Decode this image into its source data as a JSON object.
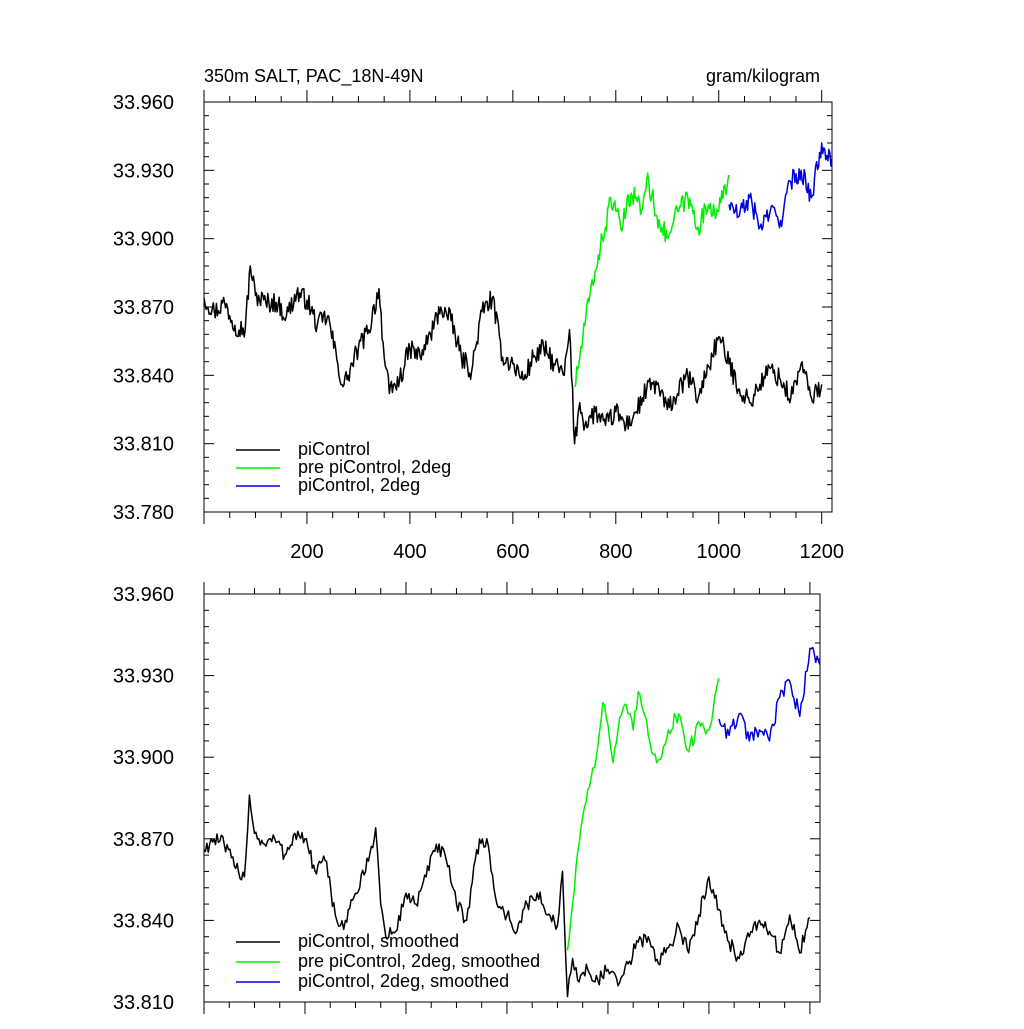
{
  "chart_data": [
    {
      "type": "line",
      "title": "350m SALT, PAC_18N-49N",
      "units": "gram/kilogram",
      "xlabel": "",
      "ylabel": "",
      "xlim": [
        0,
        1220
      ],
      "ylim": [
        33.78,
        33.96
      ],
      "x_ticks": [
        200,
        400,
        600,
        800,
        1000,
        1200
      ],
      "x_tick_labels": [
        "200",
        "400",
        "600",
        "800",
        "1000",
        "1200"
      ],
      "y_ticks": [
        33.78,
        33.81,
        33.84,
        33.87,
        33.9,
        33.93,
        33.96
      ],
      "y_tick_labels": [
        "33.780",
        "33.810",
        "33.840",
        "33.870",
        "33.900",
        "33.930",
        "33.960"
      ],
      "grid": false,
      "legend_position": "bottom-left",
      "series": [
        {
          "name": "piControl",
          "color": "#000000",
          "x": [
            0,
            20,
            40,
            60,
            80,
            90,
            100,
            120,
            140,
            160,
            180,
            200,
            220,
            240,
            260,
            270,
            280,
            300,
            320,
            340,
            350,
            360,
            380,
            400,
            420,
            440,
            460,
            480,
            500,
            520,
            540,
            560,
            580,
            600,
            620,
            640,
            660,
            680,
            700,
            710,
            720,
            730,
            740,
            760,
            780,
            800,
            820,
            840,
            860,
            880,
            900,
            920,
            940,
            960,
            980,
            1000,
            1020,
            1040,
            1060,
            1080,
            1100,
            1120,
            1140,
            1160,
            1180,
            1200
          ],
          "y": [
            33.874,
            33.868,
            33.872,
            33.862,
            33.86,
            33.888,
            33.875,
            33.872,
            33.872,
            33.866,
            33.876,
            33.873,
            33.862,
            33.866,
            33.845,
            33.835,
            33.84,
            33.852,
            33.86,
            33.878,
            33.848,
            33.832,
            33.838,
            33.852,
            33.848,
            33.858,
            33.87,
            33.864,
            33.848,
            33.842,
            33.868,
            33.874,
            33.848,
            33.845,
            33.838,
            33.848,
            33.852,
            33.845,
            33.84,
            33.86,
            33.81,
            33.828,
            33.818,
            33.824,
            33.818,
            33.824,
            33.818,
            33.824,
            33.834,
            33.836,
            33.825,
            33.832,
            33.84,
            33.83,
            33.844,
            33.857,
            33.845,
            33.834,
            33.828,
            33.836,
            33.843,
            33.838,
            33.83,
            33.845,
            33.83,
            33.836
          ]
        },
        {
          "name": "pre piControl, 2deg",
          "color": "#00ee00",
          "x": [
            720,
            730,
            740,
            750,
            760,
            770,
            780,
            790,
            800,
            810,
            820,
            830,
            840,
            850,
            860,
            870,
            880,
            890,
            900,
            910,
            920,
            940,
            960,
            980,
            1000,
            1020
          ],
          "y": [
            33.835,
            33.848,
            33.862,
            33.876,
            33.886,
            33.896,
            33.905,
            33.918,
            33.912,
            33.904,
            33.912,
            33.92,
            33.918,
            33.912,
            33.926,
            33.919,
            33.91,
            33.905,
            33.9,
            33.906,
            33.912,
            33.918,
            33.905,
            33.915,
            33.912,
            33.928
          ]
        },
        {
          "name": "piControl, 2deg",
          "color": "#0000dd",
          "x": [
            1020,
            1040,
            1060,
            1080,
            1100,
            1120,
            1140,
            1160,
            1180,
            1200,
            1220
          ],
          "y": [
            33.915,
            33.91,
            33.918,
            33.905,
            33.912,
            33.908,
            33.925,
            33.93,
            33.918,
            33.942,
            33.935
          ]
        }
      ]
    },
    {
      "type": "line",
      "title": "",
      "xlabel": "",
      "ylabel": "",
      "xlim": [
        0,
        1220
      ],
      "ylim": [
        33.81,
        33.96
      ],
      "x_ticks": [
        200,
        400,
        600,
        800,
        1000,
        1200
      ],
      "x_tick_labels": [],
      "y_ticks": [
        33.81,
        33.84,
        33.87,
        33.9,
        33.93,
        33.96
      ],
      "y_tick_labels": [
        "33.810",
        "33.840",
        "33.870",
        "33.900",
        "33.930",
        "33.960"
      ],
      "grid": false,
      "legend_position": "bottom-left",
      "series": [
        {
          "name": "piControl, smoothed",
          "color": "#000000",
          "x": [
            0,
            20,
            40,
            60,
            80,
            90,
            100,
            120,
            140,
            160,
            180,
            200,
            220,
            240,
            260,
            270,
            280,
            300,
            320,
            340,
            350,
            360,
            380,
            400,
            420,
            440,
            460,
            480,
            500,
            520,
            540,
            560,
            580,
            600,
            620,
            640,
            660,
            680,
            700,
            710,
            720,
            730,
            740,
            760,
            780,
            800,
            820,
            840,
            860,
            880,
            900,
            920,
            940,
            960,
            980,
            1000,
            1020,
            1040,
            1060,
            1080,
            1100,
            1120,
            1140,
            1160,
            1180,
            1200
          ],
          "y": [
            33.866,
            33.87,
            33.868,
            33.86,
            33.856,
            33.886,
            33.872,
            33.868,
            33.87,
            33.864,
            33.872,
            33.87,
            33.858,
            33.862,
            33.842,
            33.838,
            33.84,
            33.85,
            33.858,
            33.874,
            33.846,
            33.834,
            33.836,
            33.85,
            33.846,
            33.856,
            33.868,
            33.862,
            33.846,
            33.84,
            33.866,
            33.87,
            33.846,
            33.842,
            33.836,
            33.846,
            33.85,
            33.842,
            33.838,
            33.858,
            33.812,
            33.826,
            33.818,
            33.822,
            33.818,
            33.822,
            33.816,
            33.824,
            33.832,
            33.834,
            33.824,
            33.83,
            33.838,
            33.828,
            33.842,
            33.856,
            33.844,
            33.832,
            33.826,
            33.834,
            33.84,
            33.836,
            33.828,
            33.842,
            33.828,
            33.841
          ]
        },
        {
          "name": "pre piControl, 2deg, smoothed",
          "color": "#00ee00",
          "x": [
            720,
            730,
            740,
            750,
            760,
            770,
            780,
            790,
            800,
            810,
            820,
            830,
            840,
            850,
            860,
            870,
            880,
            890,
            900,
            910,
            920,
            940,
            960,
            980,
            1000,
            1020
          ],
          "y": [
            33.829,
            33.846,
            33.865,
            33.878,
            33.888,
            33.896,
            33.904,
            33.92,
            33.912,
            33.898,
            33.91,
            33.918,
            33.916,
            33.91,
            33.924,
            33.917,
            33.908,
            33.901,
            33.899,
            33.904,
            33.91,
            33.916,
            33.902,
            33.913,
            33.91,
            33.929
          ]
        },
        {
          "name": "piControl, 2deg, smoothed",
          "color": "#0000dd",
          "x": [
            1020,
            1040,
            1060,
            1080,
            1100,
            1120,
            1140,
            1160,
            1180,
            1200,
            1220
          ],
          "y": [
            33.914,
            33.908,
            33.916,
            33.906,
            33.91,
            33.906,
            33.922,
            33.928,
            33.915,
            33.94,
            33.934
          ]
        }
      ]
    }
  ]
}
